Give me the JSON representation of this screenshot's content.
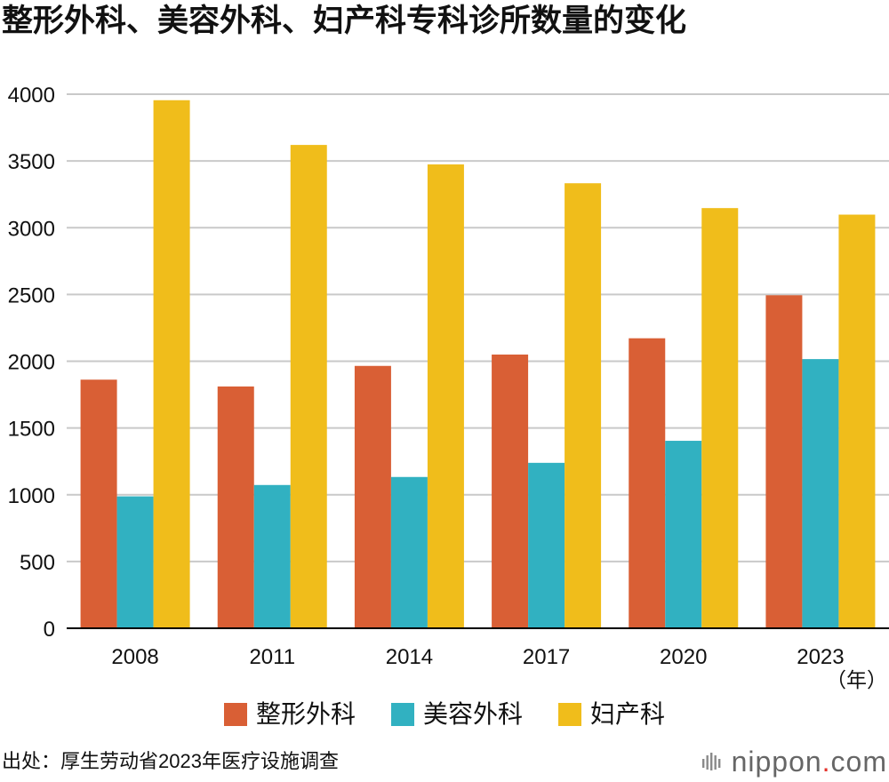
{
  "chart_data": {
    "type": "bar",
    "title": "整形外科、美容外科、妇产科专科诊所数量的变化",
    "categories": [
      "2008",
      "2011",
      "2014",
      "2017",
      "2020",
      "2023"
    ],
    "series": [
      {
        "name": "整形外科",
        "color": "#D95F35",
        "values": [
          1862,
          1811,
          1965,
          2050,
          2172,
          2494
        ]
      },
      {
        "name": "美容外科",
        "color": "#31B1C1",
        "values": [
          988,
          1073,
          1133,
          1239,
          1404,
          2016
        ]
      },
      {
        "name": "妇产科",
        "color": "#F0BD1B",
        "values": [
          3955,
          3620,
          3474,
          3333,
          3147,
          3098
        ]
      }
    ],
    "xlabel": "（年）",
    "ylim": [
      0,
      4000
    ],
    "yticks": [
      0,
      500,
      1000,
      1500,
      2000,
      2500,
      3000,
      3500,
      4000
    ],
    "grid": true,
    "legend_position": "bottom"
  },
  "source": "出处：厚生劳动省2023年医疗设施调查",
  "logo": {
    "name": "nippon",
    "dot": ".",
    "suffix": "com",
    "text_color": "#666666",
    "dot_color": "#E4322B"
  }
}
